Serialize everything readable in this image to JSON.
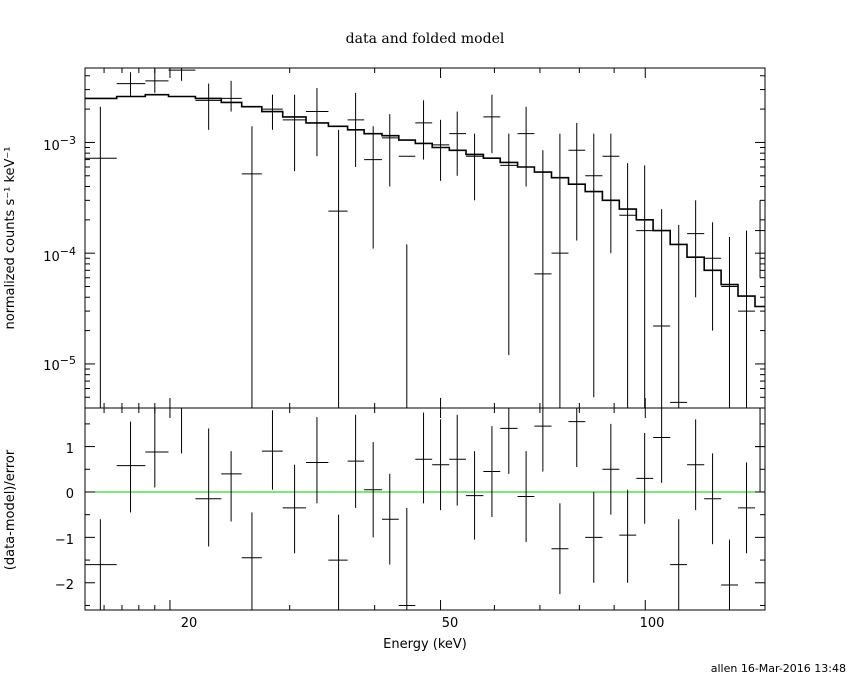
{
  "chart_data": [
    {
      "type": "scatter",
      "title": "data and folded model",
      "xlabel": "Energy (keV)",
      "ylabel": "normalized counts s⁻¹ keV⁻¹",
      "xscale": "log",
      "yscale": "log",
      "xlim": [
        15,
        150
      ],
      "ylim": [
        4e-06,
        0.0047
      ],
      "x_ticks": [
        "20",
        "50",
        "100"
      ],
      "y_ticks": [
        {
          "base": "10",
          "exp": "−3",
          "value": 0.001
        },
        {
          "base": "10",
          "exp": "−4",
          "value": 0.0001
        },
        {
          "base": "10",
          "exp": "−5",
          "value": 1e-05
        }
      ],
      "series": [
        {
          "style": "crosses",
          "color": "#000000",
          "points": [
            {
              "x": 15.8,
              "xlo": 15,
              "xhi": 16.7,
              "y": 0.00072,
              "ylo": 4e-06,
              "yhi": 0.0021
            },
            {
              "x": 17.5,
              "xlo": 16.7,
              "xhi": 18.4,
              "y": 0.0034,
              "ylo": 0.0026,
              "yhi": 0.0043
            },
            {
              "x": 19.0,
              "xlo": 18.4,
              "xhi": 19.9,
              "y": 0.0036,
              "ylo": 0.0028,
              "yhi": 0.0046
            },
            {
              "x": 20.8,
              "xlo": 19.9,
              "xhi": 21.8,
              "y": 0.0045,
              "ylo": 0.0036,
              "yhi": 0.0047
            },
            {
              "x": 22.8,
              "xlo": 21.8,
              "xhi": 23.8,
              "y": 0.0024,
              "ylo": 0.0013,
              "yhi": 0.0034
            },
            {
              "x": 24.6,
              "xlo": 23.8,
              "xhi": 25.5,
              "y": 0.0025,
              "ylo": 0.0019,
              "yhi": 0.0036
            },
            {
              "x": 26.4,
              "xlo": 25.5,
              "xhi": 27.3,
              "y": 0.00052,
              "ylo": 4e-06,
              "yhi": 0.0014
            },
            {
              "x": 28.3,
              "xlo": 27.3,
              "xhi": 29.3,
              "y": 0.002,
              "ylo": 0.0013,
              "yhi": 0.0027
            },
            {
              "x": 30.5,
              "xlo": 29.3,
              "xhi": 31.7,
              "y": 0.0016,
              "ylo": 0.00055,
              "yhi": 0.0027
            },
            {
              "x": 32.9,
              "xlo": 31.7,
              "xhi": 34.2,
              "y": 0.0019,
              "ylo": 0.00075,
              "yhi": 0.0031
            },
            {
              "x": 35.4,
              "xlo": 34.2,
              "xhi": 36.5,
              "y": 0.00024,
              "ylo": 4e-06,
              "yhi": 0.0013
            },
            {
              "x": 37.5,
              "xlo": 36.5,
              "xhi": 38.6,
              "y": 0.0016,
              "ylo": 0.0006,
              "yhi": 0.0028
            },
            {
              "x": 39.8,
              "xlo": 38.6,
              "xhi": 41.0,
              "y": 0.0007,
              "ylo": 0.00011,
              "yhi": 0.0014
            },
            {
              "x": 42.1,
              "xlo": 41.0,
              "xhi": 43.4,
              "y": 0.0011,
              "ylo": 0.0004,
              "yhi": 0.0018
            },
            {
              "x": 44.6,
              "xlo": 43.4,
              "xhi": 45.9,
              "y": 0.00075,
              "ylo": 4e-06,
              "yhi": 0.00012
            },
            {
              "x": 47.2,
              "xlo": 45.9,
              "xhi": 48.6,
              "y": 0.0015,
              "ylo": 0.0007,
              "yhi": 0.0024
            },
            {
              "x": 50.0,
              "xlo": 48.6,
              "xhi": 51.5,
              "y": 0.00095,
              "ylo": 0.00045,
              "yhi": 0.0016
            },
            {
              "x": 52.9,
              "xlo": 51.5,
              "xhi": 54.5,
              "y": 0.0012,
              "ylo": 0.0005,
              "yhi": 0.0019
            },
            {
              "x": 56.1,
              "xlo": 54.5,
              "xhi": 57.8,
              "y": 0.00075,
              "ylo": 0.0003,
              "yhi": 0.0012
            },
            {
              "x": 59.5,
              "xlo": 57.8,
              "xhi": 61.2,
              "y": 0.0017,
              "ylo": 0.0008,
              "yhi": 0.0027
            },
            {
              "x": 63.0,
              "xlo": 61.2,
              "xhi": 64.9,
              "y": 0.00062,
              "ylo": 1.2e-05,
              "yhi": 0.0012
            },
            {
              "x": 66.8,
              "xlo": 64.9,
              "xhi": 68.7,
              "y": 0.0012,
              "ylo": 0.0004,
              "yhi": 0.0021
            },
            {
              "x": 70.7,
              "xlo": 68.7,
              "xhi": 72.8,
              "y": 6.5e-05,
              "ylo": 4e-06,
              "yhi": 0.00085
            },
            {
              "x": 74.9,
              "xlo": 72.8,
              "xhi": 77.1,
              "y": 0.0001,
              "ylo": 4e-06,
              "yhi": 0.0012
            },
            {
              "x": 79.3,
              "xlo": 77.1,
              "xhi": 81.6,
              "y": 0.00085,
              "ylo": 0.00013,
              "yhi": 0.0015
            },
            {
              "x": 84.0,
              "xlo": 81.6,
              "xhi": 86.5,
              "y": 0.0005,
              "ylo": 5e-06,
              "yhi": 0.0012
            },
            {
              "x": 89.0,
              "xlo": 86.5,
              "xhi": 91.6,
              "y": 0.00075,
              "ylo": 0.0001,
              "yhi": 0.0012
            },
            {
              "x": 94.2,
              "xlo": 91.6,
              "xhi": 97.0,
              "y": 0.00022,
              "ylo": 4e-06,
              "yhi": 0.00065
            },
            {
              "x": 99.8,
              "xlo": 97.0,
              "xhi": 102.7,
              "y": 0.00016,
              "ylo": 4e-06,
              "yhi": 0.00062
            },
            {
              "x": 105.7,
              "xlo": 102.7,
              "xhi": 108.8,
              "y": 2.2e-05,
              "ylo": 4e-06,
              "yhi": 0.00025
            },
            {
              "x": 112.0,
              "xlo": 108.8,
              "xhi": 115.2,
              "y": 4.5e-06,
              "ylo": 4e-06,
              "yhi": 0.00018
            },
            {
              "x": 118.6,
              "xlo": 115.2,
              "xhi": 122.1,
              "y": 0.00015,
              "ylo": 4e-05,
              "yhi": 0.0003
            },
            {
              "x": 125.6,
              "xlo": 122.1,
              "xhi": 129.3,
              "y": 9e-05,
              "ylo": 2e-05,
              "yhi": 0.00019
            },
            {
              "x": 133.0,
              "xlo": 129.3,
              "xhi": 136.9,
              "y": 5e-05,
              "ylo": 4e-06,
              "yhi": 0.00014
            },
            {
              "x": 140.9,
              "xlo": 136.9,
              "xhi": 145.0,
              "y": 3e-05,
              "ylo": 4e-06,
              "yhi": 0.00016
            },
            {
              "x": 147.5,
              "xlo": 145.0,
              "xhi": 150.0,
              "y": 0.00016,
              "ylo": 6e-05,
              "yhi": 0.0003
            }
          ]
        },
        {
          "style": "step",
          "color": "#000000",
          "points": [
            {
              "x": 15,
              "y": 0.0025
            },
            {
              "x": 16.7,
              "y": 0.0026
            },
            {
              "x": 18.4,
              "y": 0.0027
            },
            {
              "x": 19.9,
              "y": 0.0026
            },
            {
              "x": 21.8,
              "y": 0.0025
            },
            {
              "x": 23.8,
              "y": 0.0023
            },
            {
              "x": 25.5,
              "y": 0.0021
            },
            {
              "x": 27.3,
              "y": 0.0019
            },
            {
              "x": 29.3,
              "y": 0.0017
            },
            {
              "x": 31.7,
              "y": 0.0015
            },
            {
              "x": 34.2,
              "y": 0.0014
            },
            {
              "x": 36.5,
              "y": 0.0013
            },
            {
              "x": 38.6,
              "y": 0.0012
            },
            {
              "x": 41.0,
              "y": 0.00115
            },
            {
              "x": 43.4,
              "y": 0.00105
            },
            {
              "x": 45.9,
              "y": 0.00098
            },
            {
              "x": 48.6,
              "y": 0.0009
            },
            {
              "x": 51.5,
              "y": 0.00085
            },
            {
              "x": 54.5,
              "y": 0.00078
            },
            {
              "x": 57.8,
              "y": 0.00072
            },
            {
              "x": 61.2,
              "y": 0.00066
            },
            {
              "x": 64.9,
              "y": 0.0006
            },
            {
              "x": 68.7,
              "y": 0.00054
            },
            {
              "x": 72.8,
              "y": 0.00048
            },
            {
              "x": 77.1,
              "y": 0.00042
            },
            {
              "x": 81.6,
              "y": 0.00036
            },
            {
              "x": 86.5,
              "y": 0.0003
            },
            {
              "x": 91.6,
              "y": 0.00025
            },
            {
              "x": 97.0,
              "y": 0.0002
            },
            {
              "x": 102.7,
              "y": 0.00016
            },
            {
              "x": 108.8,
              "y": 0.00012
            },
            {
              "x": 115.2,
              "y": 9.2e-05
            },
            {
              "x": 122.1,
              "y": 7e-05
            },
            {
              "x": 129.3,
              "y": 5.2e-05
            },
            {
              "x": 136.9,
              "y": 4.1e-05
            },
            {
              "x": 145.0,
              "y": 3.3e-05
            }
          ]
        }
      ]
    },
    {
      "type": "scatter",
      "xlabel": "Energy (keV)",
      "ylabel": "(data-model)/error",
      "xscale": "log",
      "xlim": [
        15,
        150
      ],
      "ylim": [
        -2.6,
        1.85
      ],
      "x_ticks": [
        "20",
        "50",
        "100"
      ],
      "y_ticks": [
        "1",
        "0",
        "−1",
        "−2"
      ],
      "reference_line": {
        "y": 0,
        "color": "#00cc00"
      },
      "series": [
        {
          "style": "crosses",
          "color": "#000000",
          "points": [
            {
              "x": 15.8,
              "xlo": 15,
              "xhi": 16.7,
              "y": -1.6,
              "ylo": -2.6,
              "yhi": -0.6
            },
            {
              "x": 17.5,
              "xlo": 16.7,
              "xhi": 18.4,
              "y": 0.58,
              "ylo": -0.45,
              "yhi": 1.55
            },
            {
              "x": 19.0,
              "xlo": 18.4,
              "xhi": 19.9,
              "y": 0.88,
              "ylo": 0.1,
              "yhi": 1.85
            },
            {
              "x": 20.8,
              "xlo": 19.9,
              "xhi": 21.8,
              "y": 1.85,
              "ylo": 0.85,
              "yhi": 1.85
            },
            {
              "x": 22.8,
              "xlo": 21.8,
              "xhi": 23.8,
              "y": -0.15,
              "ylo": -1.2,
              "yhi": 1.4
            },
            {
              "x": 24.6,
              "xlo": 23.8,
              "xhi": 25.5,
              "y": 0.4,
              "ylo": -0.65,
              "yhi": 0.9
            },
            {
              "x": 26.4,
              "xlo": 25.5,
              "xhi": 27.3,
              "y": -1.45,
              "ylo": -2.6,
              "yhi": -0.45
            },
            {
              "x": 28.3,
              "xlo": 27.3,
              "xhi": 29.3,
              "y": 0.9,
              "ylo": 0.05,
              "yhi": 1.8
            },
            {
              "x": 30.5,
              "xlo": 29.3,
              "xhi": 31.7,
              "y": -0.35,
              "ylo": -1.35,
              "yhi": 0.6
            },
            {
              "x": 32.9,
              "xlo": 31.7,
              "xhi": 34.2,
              "y": 0.65,
              "ylo": -0.25,
              "yhi": 1.65
            },
            {
              "x": 35.4,
              "xlo": 34.2,
              "xhi": 36.5,
              "y": -1.5,
              "ylo": -2.6,
              "yhi": -0.5
            },
            {
              "x": 37.5,
              "xlo": 36.5,
              "xhi": 38.6,
              "y": 0.68,
              "ylo": -0.35,
              "yhi": 1.7
            },
            {
              "x": 39.8,
              "xlo": 38.6,
              "xhi": 41.0,
              "y": 0.05,
              "ylo": -1.0,
              "yhi": 1.1
            },
            {
              "x": 42.1,
              "xlo": 41.0,
              "xhi": 43.4,
              "y": -0.6,
              "ylo": -1.6,
              "yhi": 0.4
            },
            {
              "x": 44.6,
              "xlo": 43.4,
              "xhi": 45.9,
              "y": -2.5,
              "ylo": -2.6,
              "yhi": -0.35
            },
            {
              "x": 47.2,
              "xlo": 45.9,
              "xhi": 48.6,
              "y": 0.72,
              "ylo": -0.25,
              "yhi": 1.75
            },
            {
              "x": 50.0,
              "xlo": 48.6,
              "xhi": 51.5,
              "y": 0.6,
              "ylo": -0.4,
              "yhi": 1.6
            },
            {
              "x": 52.9,
              "xlo": 51.5,
              "xhi": 54.5,
              "y": 0.72,
              "ylo": -0.3,
              "yhi": 1.7
            },
            {
              "x": 56.1,
              "xlo": 54.5,
              "xhi": 57.8,
              "y": -0.08,
              "ylo": -1.05,
              "yhi": 0.9
            },
            {
              "x": 59.5,
              "xlo": 57.8,
              "xhi": 61.2,
              "y": 0.45,
              "ylo": -0.55,
              "yhi": 1.45
            },
            {
              "x": 63.0,
              "xlo": 61.2,
              "xhi": 64.9,
              "y": 1.4,
              "ylo": 0.4,
              "yhi": 1.85
            },
            {
              "x": 66.8,
              "xlo": 64.9,
              "xhi": 68.7,
              "y": -0.1,
              "ylo": -1.1,
              "yhi": 0.9
            },
            {
              "x": 70.7,
              "xlo": 68.7,
              "xhi": 72.8,
              "y": 1.45,
              "ylo": 0.45,
              "yhi": 1.85
            },
            {
              "x": 74.9,
              "xlo": 72.8,
              "xhi": 77.1,
              "y": -1.25,
              "ylo": -2.25,
              "yhi": -0.25
            },
            {
              "x": 79.3,
              "xlo": 77.1,
              "xhi": 81.6,
              "y": 1.55,
              "ylo": 0.55,
              "yhi": 1.85
            },
            {
              "x": 84.0,
              "xlo": 81.6,
              "xhi": 86.5,
              "y": -1.0,
              "ylo": -2.0,
              "yhi": 0.0
            },
            {
              "x": 89.0,
              "xlo": 86.5,
              "xhi": 91.6,
              "y": 0.5,
              "ylo": -0.5,
              "yhi": 1.5
            },
            {
              "x": 94.2,
              "xlo": 91.6,
              "xhi": 97.0,
              "y": -0.95,
              "ylo": -2.0,
              "yhi": 0.05
            },
            {
              "x": 99.8,
              "xlo": 97.0,
              "xhi": 102.7,
              "y": 0.3,
              "ylo": -0.7,
              "yhi": 1.3
            },
            {
              "x": 105.7,
              "xlo": 102.7,
              "xhi": 108.8,
              "y": 1.2,
              "ylo": 0.2,
              "yhi": 1.85
            },
            {
              "x": 112.0,
              "xlo": 108.8,
              "xhi": 115.2,
              "y": -1.6,
              "ylo": -2.6,
              "yhi": -0.6
            },
            {
              "x": 118.6,
              "xlo": 115.2,
              "xhi": 122.1,
              "y": 0.6,
              "ylo": -0.4,
              "yhi": 1.6
            },
            {
              "x": 125.6,
              "xlo": 122.1,
              "xhi": 129.3,
              "y": -0.15,
              "ylo": -1.15,
              "yhi": 0.85
            },
            {
              "x": 133.0,
              "xlo": 129.3,
              "xhi": 136.9,
              "y": -2.05,
              "ylo": -2.6,
              "yhi": -1.05
            },
            {
              "x": 140.9,
              "xlo": 136.9,
              "xhi": 145.0,
              "y": -0.35,
              "ylo": -1.35,
              "yhi": 0.65
            },
            {
              "x": 147.5,
              "xlo": 145.0,
              "xhi": 150.0,
              "y": 1.0,
              "ylo": 0.0,
              "yhi": 1.85
            }
          ]
        }
      ]
    }
  ],
  "footer": {
    "stamp": "allen 16-Mar-2016 13:48"
  }
}
